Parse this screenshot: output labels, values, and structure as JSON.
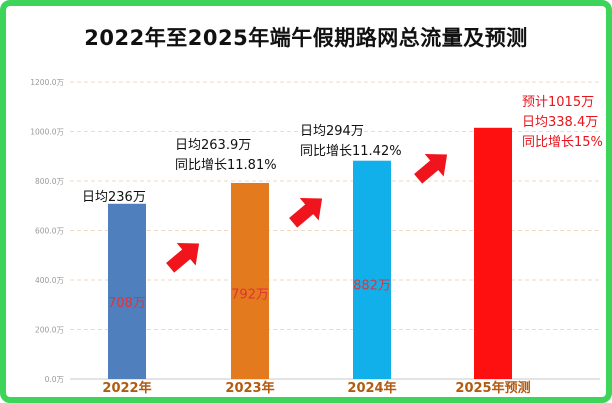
{
  "chart_data": {
    "type": "bar",
    "title": "2022年至2025年端午假期路网总流量及预测",
    "categories": [
      "2022年",
      "2023年",
      "2024年",
      "2025年预测"
    ],
    "values": [
      708,
      792,
      882,
      1015
    ],
    "value_labels": [
      "708万",
      "792万",
      "882万",
      ""
    ],
    "bar_colors": [
      "#4f7fbd",
      "#e47a1e",
      "#12b0ea",
      "#ff1010"
    ],
    "ylim": [
      0,
      1200
    ],
    "yticks": [
      "0.0万",
      "200.0万",
      "400.0万",
      "600.0万",
      "800.0万",
      "1000.0万",
      "1200.0万"
    ],
    "grid": true,
    "annotations": [
      {
        "category": "2022年",
        "lines": [
          "日均236万"
        ],
        "color": "#111111"
      },
      {
        "category": "2023年",
        "lines": [
          "日均263.9万",
          "同比增长11.81%"
        ],
        "color": "#111111"
      },
      {
        "category": "2024年",
        "lines": [
          "日均294万",
          "同比增长11.42%"
        ],
        "color": "#111111"
      },
      {
        "category": "2025年预测",
        "lines": [
          "预计1015万",
          "日均338.4万",
          "同比增长15%"
        ],
        "color": "#e8141c"
      }
    ],
    "arrow_color": "#f0141c"
  }
}
